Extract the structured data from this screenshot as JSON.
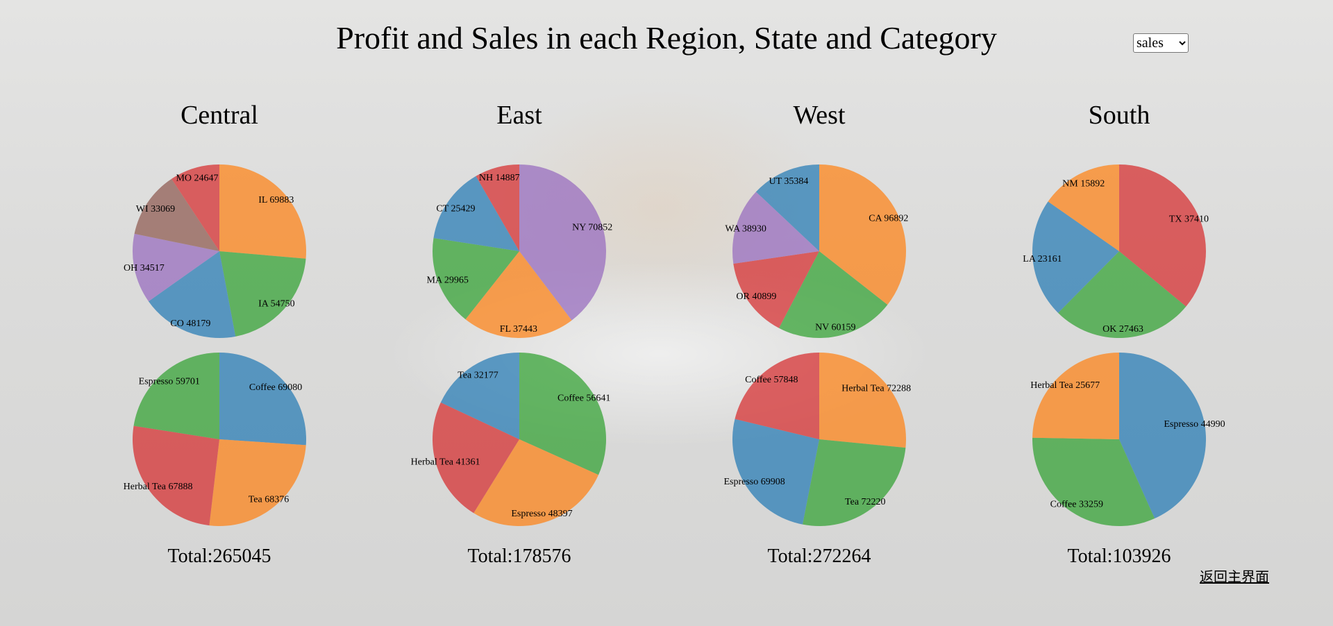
{
  "page": {
    "title": "Profit and Sales in each Region, State and Category",
    "metric_select": {
      "selected": "sales",
      "options": [
        "sales"
      ]
    },
    "back_link": "返回主界面"
  },
  "colors": {
    "blue": "#1f77b4",
    "orange": "#ff7f0e",
    "green": "#2ca02c",
    "red": "#d62728",
    "purple": "#9467bd",
    "brown": "#8c564b",
    "slice_opacity": 0.7
  },
  "regions": [
    {
      "name": "Central",
      "total": "Total:265045"
    },
    {
      "name": "East",
      "total": "Total:178576"
    },
    {
      "name": "West",
      "total": "Total:272264"
    },
    {
      "name": "South",
      "total": "Total:103926"
    }
  ],
  "chart_data": [
    {
      "type": "pie",
      "region": "Central",
      "group": "State",
      "slices": [
        {
          "label": "IL",
          "value": 69883,
          "color": "orange"
        },
        {
          "label": "IA",
          "value": 54750,
          "color": "green"
        },
        {
          "label": "CO",
          "value": 48179,
          "color": "blue"
        },
        {
          "label": "OH",
          "value": 34517,
          "color": "purple"
        },
        {
          "label": "WI",
          "value": 33069,
          "color": "brown"
        },
        {
          "label": "MO",
          "value": 24647,
          "color": "red"
        }
      ]
    },
    {
      "type": "pie",
      "region": "Central",
      "group": "Category",
      "slices": [
        {
          "label": "Coffee",
          "value": 69080,
          "color": "blue"
        },
        {
          "label": "Tea",
          "value": 68376,
          "color": "orange"
        },
        {
          "label": "Herbal Tea",
          "value": 67888,
          "color": "red"
        },
        {
          "label": "Espresso",
          "value": 59701,
          "color": "green"
        }
      ]
    },
    {
      "type": "pie",
      "region": "East",
      "group": "State",
      "slices": [
        {
          "label": "NY",
          "value": 70852,
          "color": "purple"
        },
        {
          "label": "FL",
          "value": 37443,
          "color": "orange"
        },
        {
          "label": "MA",
          "value": 29965,
          "color": "green"
        },
        {
          "label": "CT",
          "value": 25429,
          "color": "blue"
        },
        {
          "label": "NH",
          "value": 14887,
          "color": "red"
        }
      ]
    },
    {
      "type": "pie",
      "region": "East",
      "group": "Category",
      "slices": [
        {
          "label": "Coffee",
          "value": 56641,
          "color": "green"
        },
        {
          "label": "Espresso",
          "value": 48397,
          "color": "orange"
        },
        {
          "label": "Herbal Tea",
          "value": 41361,
          "color": "red"
        },
        {
          "label": "Tea",
          "value": 32177,
          "color": "blue"
        }
      ]
    },
    {
      "type": "pie",
      "region": "West",
      "group": "State",
      "slices": [
        {
          "label": "CA",
          "value": 96892,
          "color": "orange"
        },
        {
          "label": "NV",
          "value": 60159,
          "color": "green"
        },
        {
          "label": "OR",
          "value": 40899,
          "color": "red"
        },
        {
          "label": "WA",
          "value": 38930,
          "color": "purple"
        },
        {
          "label": "UT",
          "value": 35384,
          "color": "blue"
        }
      ]
    },
    {
      "type": "pie",
      "region": "West",
      "group": "Category",
      "slices": [
        {
          "label": "Herbal Tea",
          "value": 72288,
          "color": "orange"
        },
        {
          "label": "Tea",
          "value": 72220,
          "color": "green"
        },
        {
          "label": "Espresso",
          "value": 69908,
          "color": "blue"
        },
        {
          "label": "Coffee",
          "value": 57848,
          "color": "red"
        }
      ]
    },
    {
      "type": "pie",
      "region": "South",
      "group": "State",
      "slices": [
        {
          "label": "TX",
          "value": 37410,
          "color": "red"
        },
        {
          "label": "OK",
          "value": 27463,
          "color": "green"
        },
        {
          "label": "LA",
          "value": 23161,
          "color": "blue"
        },
        {
          "label": "NM",
          "value": 15892,
          "color": "orange"
        }
      ]
    },
    {
      "type": "pie",
      "region": "South",
      "group": "Category",
      "slices": [
        {
          "label": "Espresso",
          "value": 44990,
          "color": "blue"
        },
        {
          "label": "Coffee",
          "value": 33259,
          "color": "green"
        },
        {
          "label": "Herbal Tea",
          "value": 25677,
          "color": "orange"
        }
      ]
    }
  ]
}
